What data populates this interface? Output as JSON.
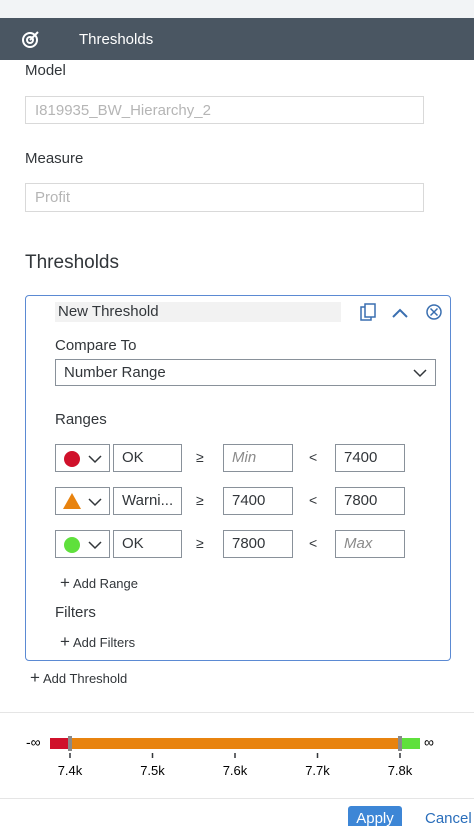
{
  "header": {
    "title": "Thresholds"
  },
  "model": {
    "label": "Model",
    "value": "I819935_BW_Hierarchy_2"
  },
  "measure": {
    "label": "Measure",
    "value": "Profit"
  },
  "section_title": "Thresholds",
  "threshold": {
    "name": "New Threshold",
    "compare_label": "Compare To",
    "compare_value": "Number Range",
    "ranges_label": "Ranges",
    "operators": [
      "≥",
      "<"
    ],
    "ranges": [
      {
        "shape": "circle",
        "color": "#d0112b",
        "label": "OK",
        "min": null,
        "min_placeholder": "Min",
        "max": 7400
      },
      {
        "shape": "triangle",
        "color": "#e8830f",
        "label": "Warni...",
        "min": 7400,
        "max": 7800
      },
      {
        "shape": "circle",
        "color": "#5fe03c",
        "label": "OK",
        "min": 7800,
        "max": null,
        "max_placeholder": "Max"
      }
    ],
    "add_range": "Add Range",
    "filters_label": "Filters",
    "add_filters": "Add Filters"
  },
  "add_threshold": "Add Threshold",
  "scale": {
    "neg_inf": "-∞",
    "pos_inf": "∞",
    "xlim": [
      7400,
      7800
    ],
    "xticks": [
      {
        "value": 7400,
        "label": "7.4k"
      },
      {
        "value": 7500,
        "label": "7.5k"
      },
      {
        "value": 7600,
        "label": "7.6k"
      },
      {
        "value": 7700,
        "label": "7.7k"
      },
      {
        "value": 7800,
        "label": "7.8k"
      }
    ]
  },
  "buttons": {
    "apply": "Apply",
    "cancel": "Cancel"
  }
}
